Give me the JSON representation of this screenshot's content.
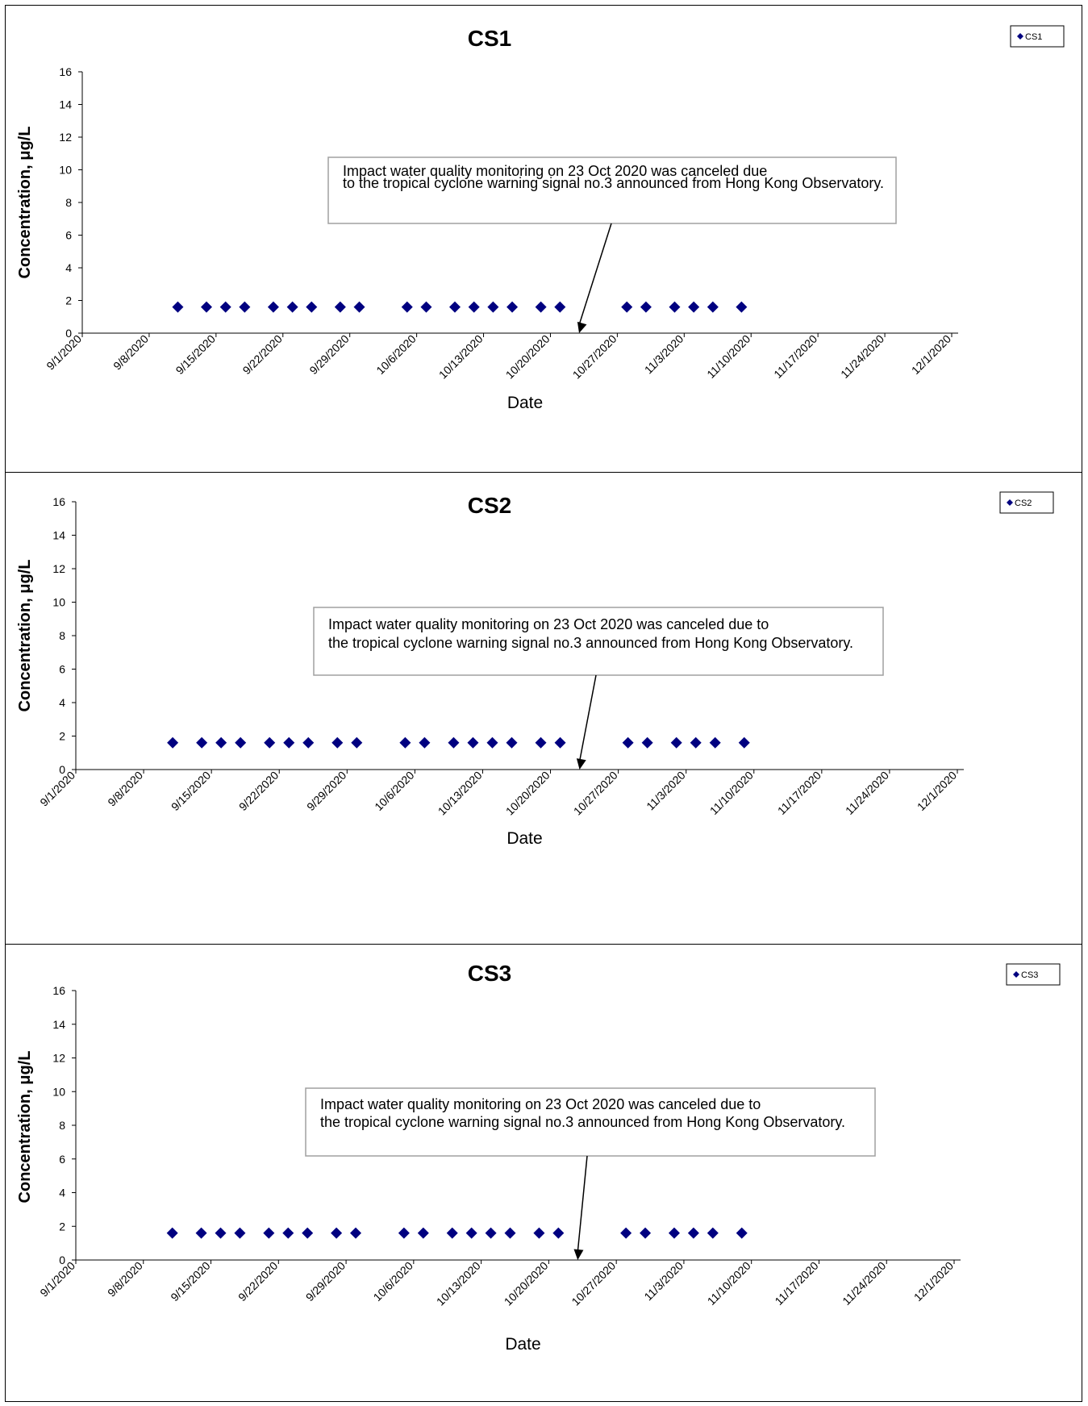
{
  "colors": {
    "marker": "#000080",
    "axis": "#000000",
    "note_border": "#a0a0a0"
  },
  "chart_data": [
    {
      "type": "scatter",
      "title": "CS1",
      "xlabel": "Date",
      "ylabel": "Concentration, μg/L",
      "ylim": [
        0,
        16
      ],
      "yticks": [
        "0",
        "2",
        "4",
        "6",
        "8",
        "10",
        "12",
        "14",
        "16"
      ],
      "xlim": [
        "2020-09-01",
        "2020-12-01"
      ],
      "xticks": [
        "9/1/2020",
        "9/8/2020",
        "9/15/2020",
        "9/22/2020",
        "9/29/2020",
        "10/6/2020",
        "10/13/2020",
        "10/20/2020",
        "10/27/2020",
        "11/3/2020",
        "11/10/2020",
        "11/17/2020",
        "11/24/2020",
        "12/1/2020"
      ],
      "legend_position": "top-right",
      "grid": false,
      "annotation": "Impact water quality monitoring on 23 Oct 2020 was canceled due to the tropical cyclone warning signal no.3 announced from Hong Kong Observatory.",
      "annotation_date": "2020-10-23",
      "series": [
        {
          "name": "CS1",
          "x": [
            "2020-09-11",
            "2020-09-14",
            "2020-09-16",
            "2020-09-18",
            "2020-09-21",
            "2020-09-23",
            "2020-09-25",
            "2020-09-28",
            "2020-09-30",
            "2020-10-05",
            "2020-10-07",
            "2020-10-10",
            "2020-10-12",
            "2020-10-14",
            "2020-10-16",
            "2020-10-19",
            "2020-10-21",
            "2020-10-28",
            "2020-10-30",
            "2020-11-02",
            "2020-11-04",
            "2020-11-06",
            "2020-11-09"
          ],
          "y": [
            1.6,
            1.6,
            1.6,
            1.6,
            1.6,
            1.6,
            1.6,
            1.6,
            1.6,
            1.6,
            1.6,
            1.6,
            1.6,
            1.6,
            1.6,
            1.6,
            1.6,
            1.6,
            1.6,
            1.6,
            1.6,
            1.6,
            1.6
          ]
        }
      ]
    },
    {
      "type": "scatter",
      "title": "CS2",
      "xlabel": "Date",
      "ylabel": "Concentration, μg/L",
      "ylim": [
        0,
        16
      ],
      "yticks": [
        "0",
        "2",
        "4",
        "6",
        "8",
        "10",
        "12",
        "14",
        "16"
      ],
      "xlim": [
        "2020-09-01",
        "2020-12-01"
      ],
      "xticks": [
        "9/1/2020",
        "9/8/2020",
        "9/15/2020",
        "9/22/2020",
        "9/29/2020",
        "10/6/2020",
        "10/13/2020",
        "10/20/2020",
        "10/27/2020",
        "11/3/2020",
        "11/10/2020",
        "11/17/2020",
        "11/24/2020",
        "12/1/2020"
      ],
      "legend_position": "top-right",
      "grid": false,
      "annotation": "Impact water quality monitoring on 23 Oct 2020 was canceled due to the tropical cyclone warning signal no.3 announced from Hong Kong Observatory.",
      "annotation_date": "2020-10-23",
      "series": [
        {
          "name": "CS2",
          "x": [
            "2020-09-11",
            "2020-09-14",
            "2020-09-16",
            "2020-09-18",
            "2020-09-21",
            "2020-09-23",
            "2020-09-25",
            "2020-09-28",
            "2020-09-30",
            "2020-10-05",
            "2020-10-07",
            "2020-10-10",
            "2020-10-12",
            "2020-10-14",
            "2020-10-16",
            "2020-10-19",
            "2020-10-21",
            "2020-10-28",
            "2020-10-30",
            "2020-11-02",
            "2020-11-04",
            "2020-11-06",
            "2020-11-09"
          ],
          "y": [
            1.6,
            1.6,
            1.6,
            1.6,
            1.6,
            1.6,
            1.6,
            1.6,
            1.6,
            1.6,
            1.6,
            1.6,
            1.6,
            1.6,
            1.6,
            1.6,
            1.6,
            1.6,
            1.6,
            1.6,
            1.6,
            1.6,
            1.6
          ]
        }
      ]
    },
    {
      "type": "scatter",
      "title": "CS3",
      "xlabel": "Date",
      "ylabel": "Concentration, μg/L",
      "ylim": [
        0,
        16
      ],
      "yticks": [
        "0",
        "2",
        "4",
        "6",
        "8",
        "10",
        "12",
        "14",
        "16"
      ],
      "xlim": [
        "2020-09-01",
        "2020-12-01"
      ],
      "xticks": [
        "9/1/2020",
        "9/8/2020",
        "9/15/2020",
        "9/22/2020",
        "9/29/2020",
        "10/6/2020",
        "10/13/2020",
        "10/20/2020",
        "10/27/2020",
        "11/3/2020",
        "11/10/2020",
        "11/17/2020",
        "11/24/2020",
        "12/1/2020"
      ],
      "legend_position": "top-right",
      "grid": false,
      "annotation": "Impact water quality monitoring on 23 Oct 2020 was canceled due to the tropical cyclone warning signal no.3 announced from Hong Kong Observatory.",
      "annotation_date": "2020-10-23",
      "series": [
        {
          "name": "CS3",
          "x": [
            "2020-09-11",
            "2020-09-14",
            "2020-09-16",
            "2020-09-18",
            "2020-09-21",
            "2020-09-23",
            "2020-09-25",
            "2020-09-28",
            "2020-09-30",
            "2020-10-05",
            "2020-10-07",
            "2020-10-10",
            "2020-10-12",
            "2020-10-14",
            "2020-10-16",
            "2020-10-19",
            "2020-10-21",
            "2020-10-28",
            "2020-10-30",
            "2020-11-02",
            "2020-11-04",
            "2020-11-06",
            "2020-11-09"
          ],
          "y": [
            1.6,
            1.6,
            1.6,
            1.6,
            1.6,
            1.6,
            1.6,
            1.6,
            1.6,
            1.6,
            1.6,
            1.6,
            1.6,
            1.6,
            1.6,
            1.6,
            1.6,
            1.6,
            1.6,
            1.6,
            1.6,
            1.6,
            1.6
          ]
        }
      ]
    }
  ]
}
